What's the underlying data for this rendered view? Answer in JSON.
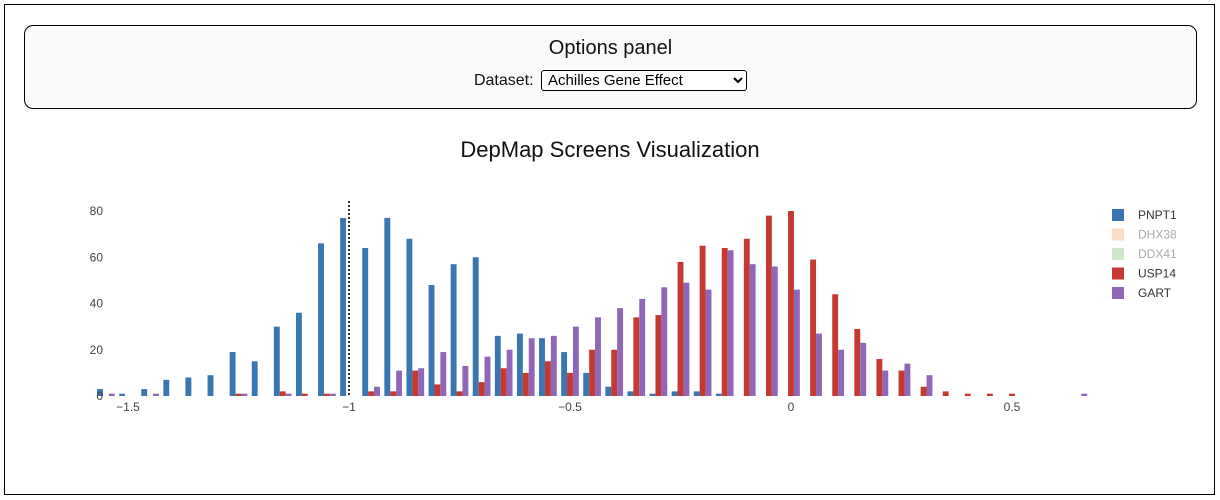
{
  "options_panel": {
    "title": "Options panel",
    "dataset_label": "Dataset:",
    "dataset_selected": "Achilles Gene Effect"
  },
  "chart_data": {
    "type": "bar",
    "title": "DepMap Screens Visualization",
    "xlabel": "",
    "ylabel": "",
    "xlim": [
      -1.55,
      0.7
    ],
    "ylim": [
      0,
      85
    ],
    "bin_width": 0.05,
    "x_ticks": [
      -1.5,
      -1,
      -0.5,
      0,
      0.5
    ],
    "x_tick_labels": [
      "−1.5",
      "−1",
      "−0.5",
      "0",
      "0.5"
    ],
    "y_ticks": [
      0,
      20,
      40,
      60,
      80
    ],
    "y_tick_labels": [
      "0",
      "20",
      "40",
      "60",
      "80"
    ],
    "threshold_line": {
      "x": -1,
      "style": "dotted"
    },
    "grid": false,
    "legend_position": "right",
    "series": [
      {
        "name": "PNPT1",
        "color": "#3a76af",
        "visible": true,
        "x": [
          -1.55,
          -1.5,
          -1.45,
          -1.4,
          -1.35,
          -1.3,
          -1.25,
          -1.2,
          -1.15,
          -1.1,
          -1.05,
          -1.0,
          -0.95,
          -0.9,
          -0.85,
          -0.8,
          -0.75,
          -0.7,
          -0.65,
          -0.6,
          -0.55,
          -0.5,
          -0.45,
          -0.4,
          -0.35,
          -0.3,
          -0.25,
          -0.2,
          -0.15
        ],
        "y": [
          3,
          1,
          3,
          7,
          8,
          9,
          19,
          15,
          30,
          36,
          66,
          77,
          64,
          77,
          68,
          48,
          57,
          60,
          26,
          27,
          25,
          19,
          10,
          4,
          2,
          1,
          2,
          2,
          1
        ]
      },
      {
        "name": "DHX38",
        "color": "#f8bb8e",
        "visible": false,
        "x": [],
        "y": []
      },
      {
        "name": "DDX41",
        "color": "#9fcf94",
        "visible": false,
        "x": [],
        "y": []
      },
      {
        "name": "USP14",
        "color": "#c43a33",
        "visible": true,
        "x": [
          -1.25,
          -1.15,
          -1.1,
          -1.05,
          -0.95,
          -0.9,
          -0.85,
          -0.8,
          -0.75,
          -0.7,
          -0.65,
          -0.6,
          -0.55,
          -0.5,
          -0.45,
          -0.4,
          -0.35,
          -0.3,
          -0.25,
          -0.2,
          -0.15,
          -0.1,
          -0.05,
          0.0,
          0.05,
          0.1,
          0.15,
          0.2,
          0.25,
          0.3,
          0.35,
          0.4,
          0.45,
          0.5
        ],
        "y": [
          1,
          2,
          1,
          1,
          2,
          2,
          11,
          5,
          2,
          6,
          12,
          10,
          15,
          10,
          20,
          20,
          34,
          35,
          58,
          65,
          64,
          68,
          78,
          80,
          59,
          44,
          29,
          16,
          11,
          4,
          2,
          1,
          1,
          1
        ]
      },
      {
        "name": "GART",
        "color": "#9066b7",
        "visible": true,
        "x": [
          -1.55,
          -1.45,
          -1.25,
          -1.15,
          -1.05,
          -0.95,
          -0.9,
          -0.85,
          -0.8,
          -0.75,
          -0.7,
          -0.65,
          -0.6,
          -0.55,
          -0.5,
          -0.45,
          -0.4,
          -0.35,
          -0.3,
          -0.25,
          -0.2,
          -0.15,
          -0.1,
          -0.05,
          0.0,
          0.05,
          0.1,
          0.15,
          0.2,
          0.25,
          0.3,
          0.65
        ],
        "y": [
          1,
          1,
          1,
          1,
          1,
          4,
          11,
          12,
          19,
          13,
          17,
          20,
          25,
          26,
          30,
          34,
          38,
          42,
          47,
          49,
          46,
          63,
          57,
          56,
          46,
          27,
          20,
          23,
          11,
          14,
          9,
          1
        ]
      }
    ]
  }
}
